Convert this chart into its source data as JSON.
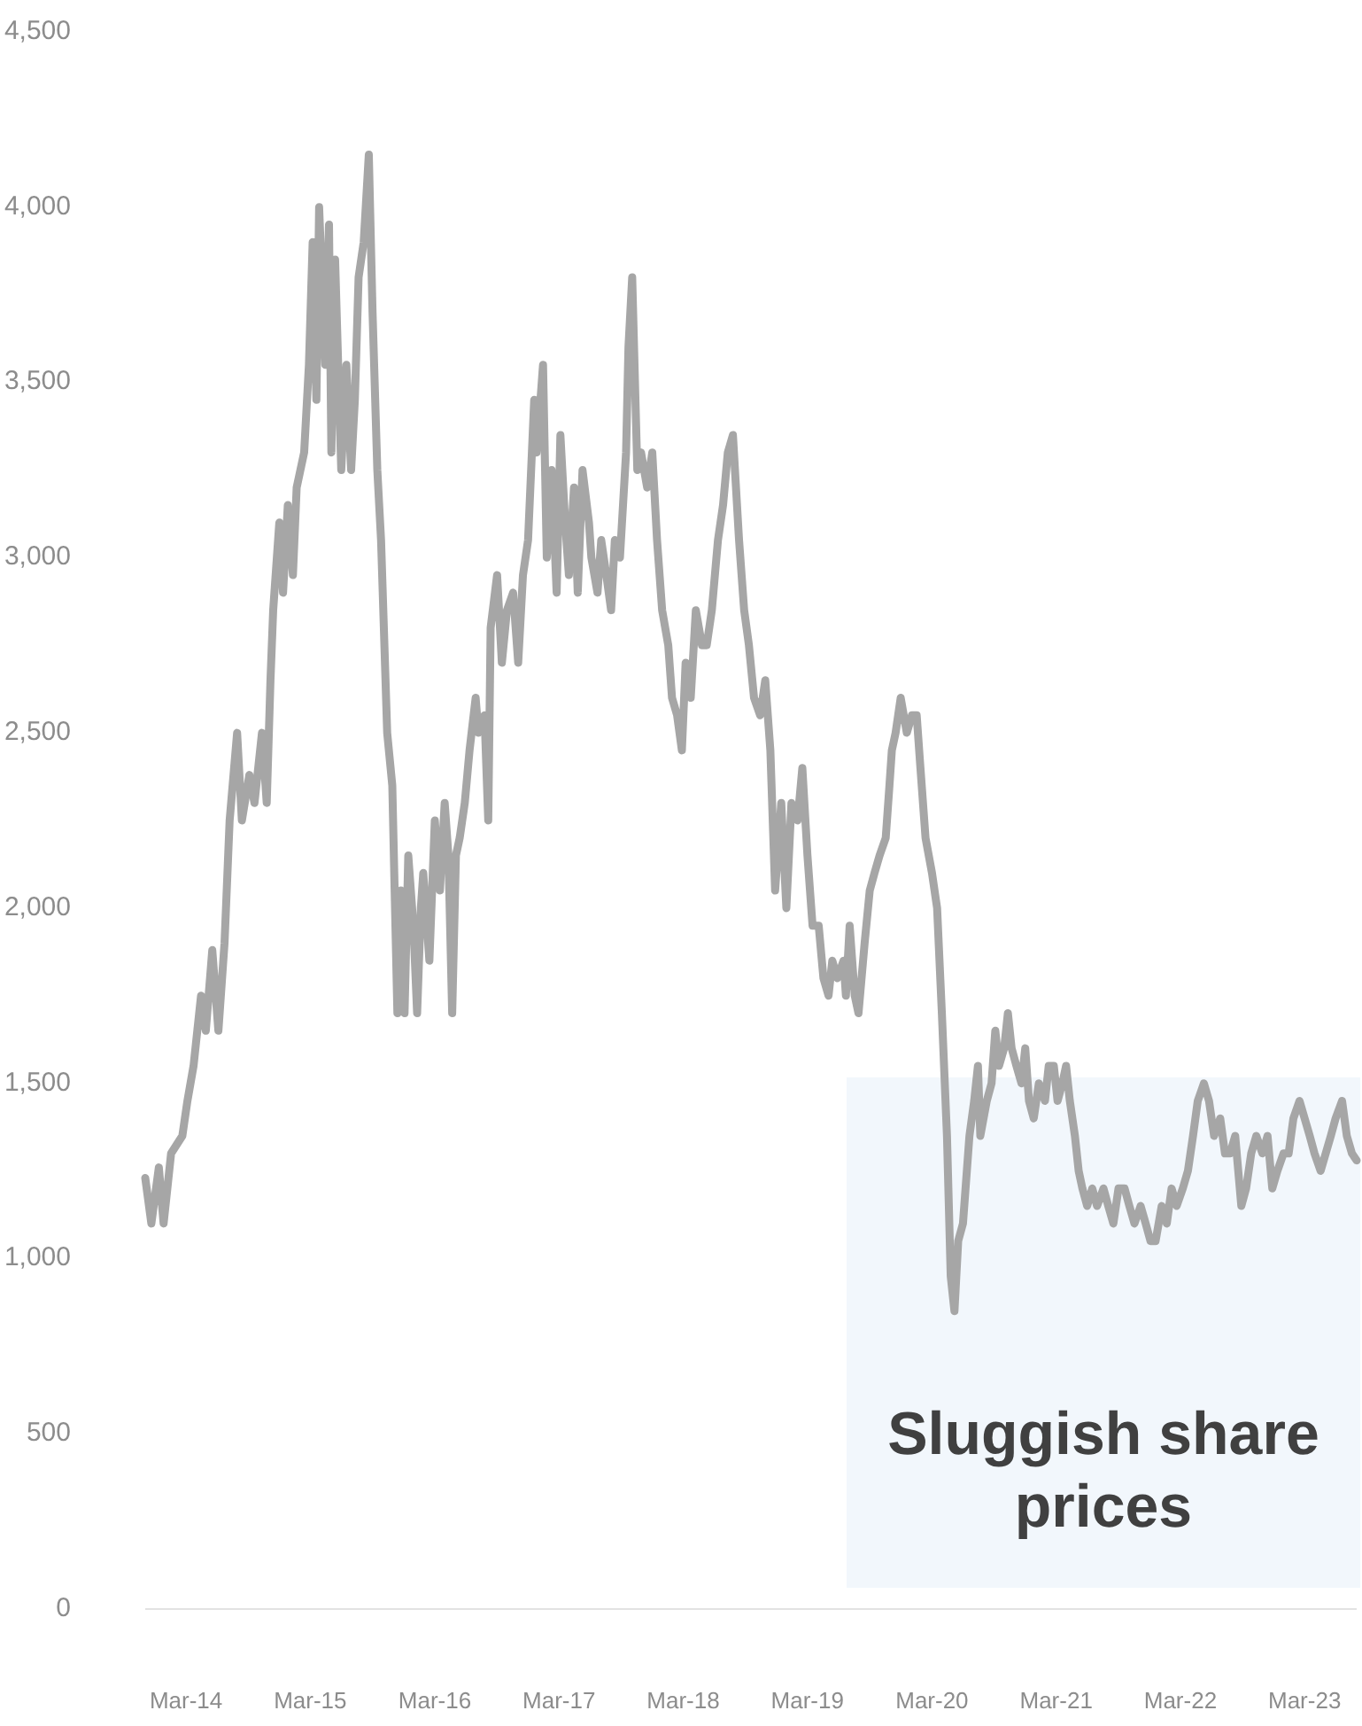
{
  "chart_data": {
    "type": "line",
    "x": [
      "2013-11-15",
      "2013-12-03",
      "2013-12-25",
      "2014-01-08",
      "2014-01-30",
      "2014-03-04",
      "2014-03-19",
      "2014-04-06",
      "2014-04-28",
      "2014-05-12",
      "2014-05-31",
      "2014-06-18",
      "2014-07-06",
      "2014-07-21",
      "2014-08-12",
      "2014-08-26",
      "2014-09-17",
      "2014-10-02",
      "2014-10-24",
      "2014-11-07",
      "2014-11-18",
      "2014-11-26",
      "2014-12-14",
      "2014-12-25",
      "2015-01-08",
      "2015-01-23",
      "2015-02-03",
      "2015-02-25",
      "2015-03-11",
      "2015-03-22",
      "2015-04-02",
      "2015-04-10",
      "2015-04-28",
      "2015-05-09",
      "2015-05-16",
      "2015-05-27",
      "2015-06-14",
      "2015-06-29",
      "2015-07-13",
      "2015-07-24",
      "2015-08-04",
      "2015-08-19",
      "2015-09-03",
      "2015-09-14",
      "2015-09-28",
      "2015-10-09",
      "2015-10-27",
      "2015-11-11",
      "2015-11-26",
      "2015-12-06",
      "2015-12-17",
      "2015-12-28",
      "2016-01-12",
      "2016-01-23",
      "2016-02-03",
      "2016-02-10",
      "2016-02-28",
      "2016-03-15",
      "2016-03-30",
      "2016-04-13",
      "2016-04-24",
      "2016-05-05",
      "2016-05-16",
      "2016-05-27",
      "2016-06-11",
      "2016-06-25",
      "2016-07-13",
      "2016-07-21",
      "2016-08-08",
      "2016-08-19",
      "2016-08-26",
      "2016-09-14",
      "2016-09-28",
      "2016-10-13",
      "2016-10-31",
      "2016-11-15",
      "2016-11-29",
      "2016-12-14",
      "2017-01-01",
      "2017-01-08",
      "2017-01-27",
      "2017-02-07",
      "2017-02-21",
      "2017-03-08",
      "2017-03-19",
      "2017-04-02",
      "2017-04-13",
      "2017-04-28",
      "2017-05-09",
      "2017-05-23",
      "2017-06-11",
      "2017-06-18",
      "2017-07-06",
      "2017-07-17",
      "2017-08-01",
      "2017-08-15",
      "2017-08-26",
      "2017-09-10",
      "2017-09-28",
      "2017-10-05",
      "2017-10-16",
      "2017-10-31",
      "2017-11-11",
      "2017-11-29",
      "2017-12-14",
      "2017-12-28",
      "2018-01-12",
      "2018-01-30",
      "2018-02-10",
      "2018-02-25",
      "2018-03-11",
      "2018-03-22",
      "2018-04-06",
      "2018-04-21",
      "2018-05-09",
      "2018-05-23",
      "2018-06-07",
      "2018-06-25",
      "2018-07-10",
      "2018-07-24",
      "2018-08-08",
      "2018-08-26",
      "2018-09-10",
      "2018-09-24",
      "2018-10-09",
      "2018-10-27",
      "2018-11-11",
      "2018-11-26",
      "2018-12-10",
      "2018-12-28",
      "2019-01-12",
      "2019-01-27",
      "2019-02-14",
      "2019-02-28",
      "2019-03-15",
      "2019-03-30",
      "2019-04-17",
      "2019-05-01",
      "2019-05-16",
      "2019-05-27",
      "2019-06-11",
      "2019-06-29",
      "2019-07-06",
      "2019-07-17",
      "2019-08-01",
      "2019-08-12",
      "2019-08-30",
      "2019-09-14",
      "2019-09-28",
      "2019-10-13",
      "2019-10-31",
      "2019-11-11",
      "2019-11-18",
      "2019-11-29",
      "2019-12-14",
      "2020-01-01",
      "2020-01-16",
      "2020-01-30",
      "2020-02-10",
      "2020-02-25",
      "2020-03-15",
      "2020-03-30",
      "2020-04-13",
      "2020-04-28",
      "2020-05-09",
      "2020-05-20",
      "2020-05-31",
      "2020-06-14",
      "2020-07-03",
      "2020-07-17",
      "2020-07-28",
      "2020-08-04",
      "2020-08-23",
      "2020-09-06",
      "2020-09-17",
      "2020-09-28",
      "2020-10-13",
      "2020-10-24",
      "2020-11-04",
      "2020-11-18",
      "2020-12-03",
      "2020-12-14",
      "2020-12-25",
      "2021-01-08",
      "2021-01-23",
      "2021-02-10",
      "2021-02-21",
      "2021-03-08",
      "2021-03-19",
      "2021-04-02",
      "2021-04-13",
      "2021-04-24",
      "2021-05-09",
      "2021-05-20",
      "2021-05-31",
      "2021-06-14",
      "2021-06-29",
      "2021-07-13",
      "2021-08-01",
      "2021-08-15",
      "2021-08-30",
      "2021-09-14",
      "2021-10-02",
      "2021-10-16",
      "2021-10-31",
      "2021-11-18",
      "2021-12-03",
      "2021-12-17",
      "2022-01-01",
      "2022-01-19",
      "2022-02-03",
      "2022-02-17",
      "2022-03-04",
      "2022-03-22",
      "2022-04-06",
      "2022-04-21",
      "2022-05-05",
      "2022-05-23",
      "2022-06-07",
      "2022-06-22",
      "2022-07-10",
      "2022-07-24",
      "2022-08-08",
      "2022-08-23",
      "2022-09-10",
      "2022-09-24",
      "2022-10-09",
      "2022-10-24",
      "2022-11-11",
      "2022-11-26",
      "2022-12-10",
      "2022-12-25",
      "2023-01-12",
      "2023-01-27",
      "2023-02-10",
      "2023-02-28",
      "2023-03-15",
      "2023-03-30",
      "2023-04-13",
      "2023-05-01",
      "2023-05-16",
      "2023-05-31",
      "2023-06-14",
      "2023-07-03",
      "2023-07-17",
      "2023-08-01",
      "2023-08-15"
    ],
    "series": [
      {
        "color": "#a6a6a6",
        "values": [
          1230,
          1100,
          1260,
          1100,
          1300,
          1350,
          1450,
          1550,
          1750,
          1650,
          1880,
          1650,
          1900,
          2250,
          2500,
          2250,
          2380,
          2300,
          2500,
          2300,
          2650,
          2850,
          3100,
          2900,
          3150,
          2950,
          3200,
          3300,
          3550,
          3900,
          3450,
          4000,
          3550,
          3950,
          3300,
          3850,
          3250,
          3550,
          3250,
          3450,
          3800,
          3900,
          4150,
          3700,
          3250,
          3050,
          2500,
          2350,
          1700,
          2050,
          1700,
          2150,
          1950,
          1700,
          2000,
          2100,
          1850,
          2250,
          2050,
          2300,
          2150,
          1700,
          2150,
          2200,
          2300,
          2450,
          2600,
          2500,
          2550,
          2250,
          2800,
          2950,
          2700,
          2850,
          2900,
          2700,
          2950,
          3050,
          3450,
          3300,
          3550,
          3000,
          3250,
          2900,
          3350,
          3100,
          2950,
          3200,
          2900,
          3250,
          3100,
          3000,
          2900,
          3050,
          2950,
          2850,
          3050,
          3000,
          3300,
          3600,
          3800,
          3250,
          3300,
          3200,
          3300,
          3050,
          2850,
          2750,
          2600,
          2550,
          2450,
          2700,
          2600,
          2850,
          2750,
          2750,
          2850,
          3050,
          3150,
          3300,
          3350,
          3050,
          2850,
          2750,
          2600,
          2550,
          2650,
          2450,
          2050,
          2300,
          2000,
          2300,
          2250,
          2400,
          2150,
          1950,
          1950,
          1800,
          1750,
          1850,
          1800,
          1850,
          1750,
          1950,
          1750,
          1700,
          1900,
          2050,
          2100,
          2150,
          2200,
          2350,
          2450,
          2500,
          2600,
          2500,
          2550,
          2550,
          2400,
          2200,
          2100,
          2000,
          1700,
          1350,
          950,
          850,
          1050,
          1100,
          1350,
          1450,
          1550,
          1350,
          1450,
          1500,
          1650,
          1550,
          1600,
          1700,
          1600,
          1550,
          1500,
          1600,
          1450,
          1400,
          1500,
          1450,
          1550,
          1550,
          1450,
          1500,
          1550,
          1450,
          1350,
          1250,
          1200,
          1150,
          1200,
          1150,
          1200,
          1150,
          1100,
          1200,
          1200,
          1150,
          1100,
          1150,
          1100,
          1050,
          1050,
          1150,
          1100,
          1200,
          1150,
          1200,
          1250,
          1350,
          1450,
          1500,
          1450,
          1350,
          1400,
          1300,
          1300,
          1350,
          1150,
          1200,
          1300,
          1350,
          1300,
          1350,
          1200,
          1250,
          1300,
          1300,
          1400,
          1450,
          1400,
          1350,
          1300,
          1250,
          1300,
          1350,
          1400,
          1450,
          1350,
          1300,
          1280
        ]
      }
    ],
    "xlim": [
      "2013-11-15",
      "2023-08-15"
    ],
    "xticks": [
      {
        "value": "2014-03-15",
        "label": "Mar-14"
      },
      {
        "value": "2015-03-15",
        "label": "Mar-15"
      },
      {
        "value": "2016-03-15",
        "label": "Mar-16"
      },
      {
        "value": "2017-03-15",
        "label": "Mar-17"
      },
      {
        "value": "2018-03-15",
        "label": "Mar-18"
      },
      {
        "value": "2019-03-15",
        "label": "Mar-19"
      },
      {
        "value": "2020-03-15",
        "label": "Mar-20"
      },
      {
        "value": "2021-03-15",
        "label": "Mar-21"
      },
      {
        "value": "2022-03-15",
        "label": "Mar-22"
      },
      {
        "value": "2023-03-15",
        "label": "Mar-23"
      }
    ],
    "ylim": [
      0,
      4500
    ],
    "yticks": [
      0,
      500,
      {
        "value": 1000,
        "label": "1,000"
      },
      {
        "value": 1500,
        "label": "1,500"
      },
      {
        "value": 2000,
        "label": "2,000"
      },
      {
        "value": 2500,
        "label": "2,500"
      },
      {
        "value": 3000,
        "label": "3,000"
      },
      {
        "value": 3500,
        "label": "3,500"
      },
      {
        "value": 4000,
        "label": "4,000"
      },
      {
        "value": 4500,
        "label": "4,500"
      }
    ],
    "annotations": [
      "Sluggish share prices"
    ],
    "grid": false,
    "marker": "none",
    "line_style": "solid"
  }
}
